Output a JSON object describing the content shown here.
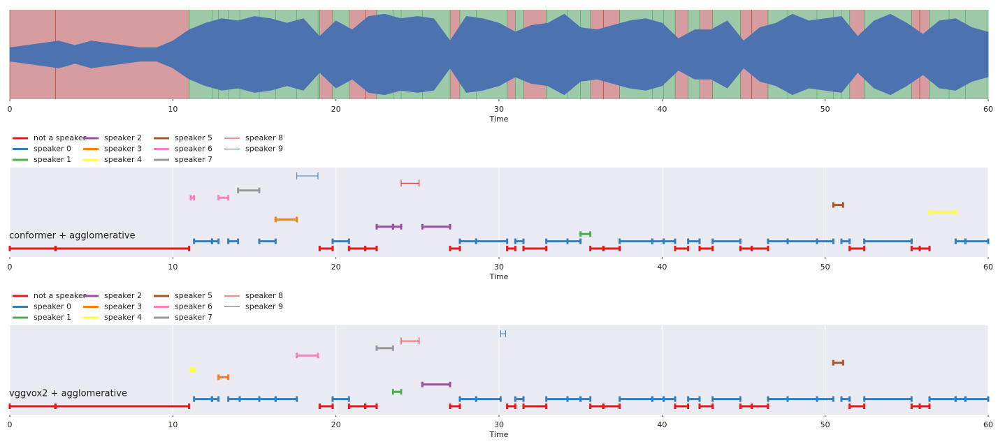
{
  "chart_data": [
    {
      "type": "waveform",
      "xlabel": "Time",
      "xlim": [
        0,
        60
      ],
      "xticks": [
        0,
        10,
        20,
        30,
        40,
        50,
        60
      ],
      "ylim": [
        -1,
        1
      ],
      "color": "#4c72b0",
      "x": [
        0,
        1,
        2,
        3,
        4,
        5,
        6,
        7,
        8,
        9,
        10,
        11,
        12,
        13,
        14,
        15,
        16,
        17,
        18,
        19,
        20,
        21,
        22,
        23,
        24,
        25,
        26,
        27,
        28,
        29,
        30,
        31,
        32,
        33,
        34,
        35,
        36,
        37,
        38,
        39,
        40,
        41,
        42,
        43,
        44,
        45,
        46,
        47,
        48,
        49,
        50,
        51,
        52,
        53,
        54,
        55,
        56,
        57,
        58,
        59,
        60
      ],
      "values": [
        0.15,
        0.2,
        0.25,
        0.3,
        0.2,
        0.3,
        0.25,
        0.2,
        0.15,
        0.15,
        0.3,
        0.55,
        0.7,
        0.8,
        0.75,
        0.85,
        0.8,
        0.7,
        0.8,
        0.4,
        0.75,
        0.55,
        0.85,
        0.9,
        0.8,
        0.85,
        0.8,
        0.3,
        0.85,
        0.8,
        0.7,
        0.5,
        0.65,
        0.7,
        0.9,
        0.6,
        0.55,
        0.65,
        0.75,
        0.8,
        0.7,
        0.35,
        0.55,
        0.55,
        0.75,
        0.3,
        0.6,
        0.7,
        0.9,
        0.75,
        0.8,
        0.85,
        0.4,
        0.75,
        0.9,
        0.7,
        0.45,
        0.75,
        0.8,
        0.6,
        0.5
      ],
      "regions": [
        {
          "color": "#d69ca0",
          "edge": "#c0392b",
          "spans": [
            [
              0,
              11
            ],
            [
              19,
              19.8
            ],
            [
              20.8,
              22.5
            ],
            [
              27,
              27.6
            ],
            [
              30.5,
              31
            ],
            [
              31.5,
              32.9
            ],
            [
              35.6,
              37.4
            ],
            [
              40.8,
              41.6
            ],
            [
              42.3,
              43.1
            ],
            [
              44.8,
              46.5
            ],
            [
              51.5,
              52.4
            ],
            [
              55.3,
              56.4
            ]
          ],
          "boundaries": [
            2.8,
            21.8,
            36.4,
            45.5,
            55.8
          ]
        },
        {
          "color": "#9dc9a8",
          "edge": "#55a86b",
          "spans": [
            [
              11,
              19
            ],
            [
              19.8,
              20.8
            ],
            [
              22.5,
              27
            ],
            [
              27.6,
              30.5
            ],
            [
              31,
              31.5
            ],
            [
              32.9,
              35.6
            ],
            [
              37.4,
              40.8
            ],
            [
              41.6,
              42.3
            ],
            [
              43.1,
              44.8
            ],
            [
              46.5,
              51.5
            ],
            [
              52.4,
              55.3
            ],
            [
              56.4,
              60
            ]
          ],
          "boundaries": [
            12.4,
            12.8,
            13.4,
            14.1,
            15.3,
            16.3,
            17.6,
            18.9,
            23.5,
            24,
            25.3,
            28.6,
            34.2,
            35,
            39.4,
            40.1,
            47.7,
            49.5,
            50.5,
            51,
            57.6,
            58.6
          ]
        }
      ]
    },
    {
      "type": "segments",
      "title": "conformer + agglomerative",
      "xlabel": "Time",
      "xlim": [
        0,
        60
      ],
      "xticks": [
        0,
        10,
        20,
        30,
        40,
        50,
        60
      ],
      "grid": true,
      "series": [
        {
          "name": "not a speaker",
          "color": "#e41a1c",
          "linewidth": 3,
          "segments": [
            [
              0,
              2.8
            ],
            [
              2.8,
              11
            ],
            [
              19,
              19.8
            ],
            [
              20.8,
              21.8
            ],
            [
              21.8,
              22.5
            ],
            [
              27,
              27.6
            ],
            [
              30.5,
              31
            ],
            [
              31.5,
              32.9
            ],
            [
              35.6,
              36.4
            ],
            [
              36.4,
              37.4
            ],
            [
              40.8,
              41.6
            ],
            [
              42.3,
              43.1
            ],
            [
              44.8,
              45.5
            ],
            [
              45.5,
              46.5
            ],
            [
              51.5,
              52.4
            ],
            [
              55.3,
              55.8
            ],
            [
              55.8,
              56.4
            ]
          ]
        },
        {
          "name": "speaker 0",
          "color": "#377eb8",
          "linewidth": 3,
          "segments": [
            [
              11.3,
              12.4
            ],
            [
              12.4,
              12.8
            ],
            [
              13.4,
              14
            ],
            [
              15.3,
              16.3
            ],
            [
              19.8,
              20.8
            ],
            [
              27.6,
              28.6
            ],
            [
              28.6,
              30.5
            ],
            [
              31,
              31.5
            ],
            [
              32.9,
              34.2
            ],
            [
              34.2,
              35
            ],
            [
              37.4,
              39.4
            ],
            [
              39.4,
              40.1
            ],
            [
              40.1,
              40.8
            ],
            [
              41.6,
              42.3
            ],
            [
              43.1,
              44.8
            ],
            [
              46.5,
              47.7
            ],
            [
              47.7,
              49.5
            ],
            [
              49.5,
              50.5
            ],
            [
              51,
              51.5
            ],
            [
              52.4,
              55.3
            ],
            [
              58,
              58.6
            ],
            [
              58.6,
              60
            ]
          ]
        },
        {
          "name": "speaker 1",
          "color": "#4daf4a",
          "linewidth": 3,
          "segments": [
            [
              35,
              35.6
            ]
          ]
        },
        {
          "name": "speaker 2",
          "color": "#984ea3",
          "linewidth": 3,
          "segments": [
            [
              22.5,
              23.5
            ],
            [
              23.5,
              24
            ],
            [
              25.3,
              27
            ]
          ]
        },
        {
          "name": "speaker 3",
          "color": "#ff7f00",
          "linewidth": 3,
          "segments": [
            [
              16.3,
              17.6
            ]
          ]
        },
        {
          "name": "speaker 4",
          "color": "#ffff33",
          "linewidth": 3,
          "segments": [
            [
              56.4,
              58
            ]
          ]
        },
        {
          "name": "speaker 5",
          "color": "#a65628",
          "linewidth": 3,
          "segments": [
            [
              50.5,
              51.1
            ]
          ]
        },
        {
          "name": "speaker 6",
          "color": "#f781bf",
          "linewidth": 3,
          "segments": [
            [
              11.1,
              11.3
            ],
            [
              12.8,
              13.4
            ]
          ]
        },
        {
          "name": "speaker 7",
          "color": "#999999",
          "linewidth": 3,
          "segments": [
            [
              14,
              15.3
            ]
          ]
        },
        {
          "name": "speaker 8",
          "color": "#e41a1c",
          "linewidth": 1,
          "segments": [
            [
              24,
              25.1
            ]
          ]
        },
        {
          "name": "speaker 9",
          "color": "#377eb8",
          "linewidth": 1,
          "segments": [
            [
              17.6,
              18.9
            ]
          ]
        }
      ]
    },
    {
      "type": "segments",
      "title": "vggvox2 + agglomerative",
      "xlabel": "Time",
      "xlim": [
        0,
        60
      ],
      "xticks": [
        0,
        10,
        20,
        30,
        40,
        50,
        60
      ],
      "grid": true,
      "series": [
        {
          "name": "not a speaker",
          "color": "#e41a1c",
          "linewidth": 3,
          "segments": [
            [
              0,
              2.8
            ],
            [
              2.8,
              11
            ],
            [
              19,
              19.8
            ],
            [
              20.8,
              21.8
            ],
            [
              21.8,
              22.5
            ],
            [
              27,
              27.6
            ],
            [
              30.5,
              31
            ],
            [
              31.5,
              32.9
            ],
            [
              35.6,
              36.4
            ],
            [
              36.4,
              37.4
            ],
            [
              40.8,
              41.6
            ],
            [
              42.3,
              43.1
            ],
            [
              44.8,
              45.5
            ],
            [
              45.5,
              46.5
            ],
            [
              51.5,
              52.4
            ],
            [
              55.3,
              55.8
            ],
            [
              55.8,
              56.4
            ]
          ]
        },
        {
          "name": "speaker 0",
          "color": "#377eb8",
          "linewidth": 3,
          "segments": [
            [
              11.3,
              12.4
            ],
            [
              12.4,
              12.8
            ],
            [
              13.4,
              14.1
            ],
            [
              14.1,
              15.3
            ],
            [
              15.3,
              16.3
            ],
            [
              16.3,
              17.6
            ],
            [
              19.8,
              20.8
            ],
            [
              27.6,
              28.6
            ],
            [
              28.6,
              30.1
            ],
            [
              31,
              31.5
            ],
            [
              32.9,
              34.2
            ],
            [
              34.2,
              35
            ],
            [
              35,
              35.6
            ],
            [
              37.4,
              39.4
            ],
            [
              39.4,
              40.1
            ],
            [
              40.1,
              40.8
            ],
            [
              41.6,
              42.3
            ],
            [
              43.1,
              44.8
            ],
            [
              46.5,
              47.7
            ],
            [
              47.7,
              49.5
            ],
            [
              49.5,
              50.5
            ],
            [
              51,
              51.5
            ],
            [
              52.4,
              55.3
            ],
            [
              56.4,
              58
            ],
            [
              58,
              58.6
            ],
            [
              58.6,
              60
            ]
          ]
        },
        {
          "name": "speaker 1",
          "color": "#4daf4a",
          "linewidth": 3,
          "segments": [
            [
              23.5,
              24
            ]
          ]
        },
        {
          "name": "speaker 2",
          "color": "#984ea3",
          "linewidth": 3,
          "segments": [
            [
              25.3,
              27
            ]
          ]
        },
        {
          "name": "speaker 3",
          "color": "#ff7f00",
          "linewidth": 3,
          "segments": [
            [
              12.8,
              13.4
            ]
          ]
        },
        {
          "name": "speaker 4",
          "color": "#ffff33",
          "linewidth": 3,
          "segments": [
            [
              11.1,
              11.3
            ]
          ]
        },
        {
          "name": "speaker 5",
          "color": "#a65628",
          "linewidth": 3,
          "segments": [
            [
              50.5,
              51.1
            ]
          ]
        },
        {
          "name": "speaker 6",
          "color": "#f781bf",
          "linewidth": 3,
          "segments": [
            [
              17.6,
              18.9
            ]
          ]
        },
        {
          "name": "speaker 7",
          "color": "#999999",
          "linewidth": 3,
          "segments": [
            [
              22.5,
              23.5
            ]
          ]
        },
        {
          "name": "speaker 8",
          "color": "#e41a1c",
          "linewidth": 1,
          "segments": [
            [
              24,
              25.1
            ]
          ]
        },
        {
          "name": "speaker 9",
          "color": "#377eb8",
          "linewidth": 1,
          "segments": [
            [
              30.1,
              30.4
            ]
          ]
        }
      ]
    }
  ]
}
